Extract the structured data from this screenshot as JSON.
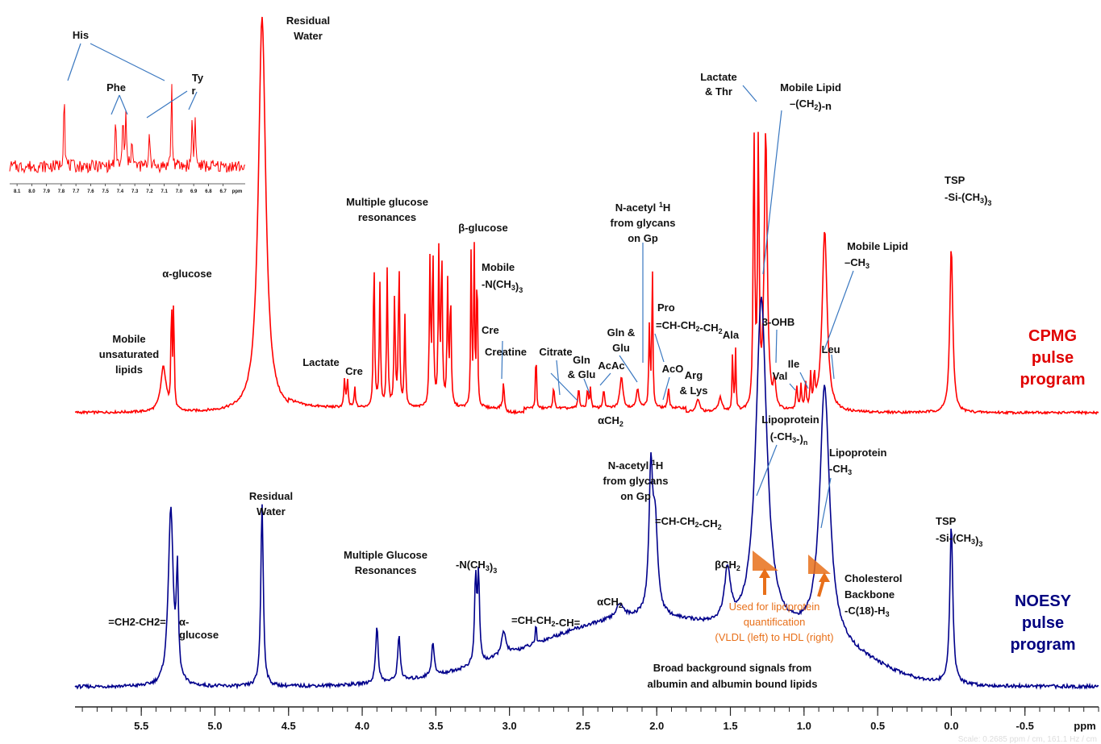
{
  "chart_data": {
    "type": "line",
    "xlabel": "ppm",
    "x_reversed": true,
    "xlim": [
      5.95,
      -1.0
    ],
    "x_ticks": [
      "5.5",
      "5.0",
      "4.5",
      "4.0",
      "3.5",
      "3.0",
      "2.5",
      "2.0",
      "1.5",
      "1.0",
      "0.5",
      "0.0",
      "-0.5"
    ],
    "x_tick_values": [
      5.5,
      5.0,
      4.5,
      4.0,
      3.5,
      3.0,
      2.5,
      2.0,
      1.5,
      1.0,
      0.5,
      0.0,
      -0.5
    ],
    "colors": {
      "cpmg": "#ff0000",
      "noesy": "#00008b",
      "annotation_line": "#3a78c0",
      "orange": "#e8701a"
    },
    "series": [
      {
        "name": "CPMG pulse program",
        "color": "#ff0000",
        "peaks": [
          {
            "ppm": 5.35,
            "h": 0.22,
            "w": 0.022
          },
          {
            "ppm": 5.295,
            "h": 0.56,
            "w": 0.004
          },
          {
            "ppm": 5.28,
            "h": 0.55,
            "w": 0.004
          },
          {
            "ppm": 4.68,
            "h": 1.95,
            "w": 0.03
          },
          {
            "ppm": 4.12,
            "h": 0.14,
            "w": 0.005
          },
          {
            "ppm": 4.1,
            "h": 0.14,
            "w": 0.005
          },
          {
            "ppm": 4.05,
            "h": 0.1,
            "w": 0.005
          },
          {
            "ppm": 3.92,
            "h": 0.75,
            "w": 0.005
          },
          {
            "ppm": 3.88,
            "h": 0.6,
            "w": 0.005
          },
          {
            "ppm": 3.83,
            "h": 0.68,
            "w": 0.005
          },
          {
            "ppm": 3.78,
            "h": 0.55,
            "w": 0.005
          },
          {
            "ppm": 3.75,
            "h": 0.72,
            "w": 0.005
          },
          {
            "ppm": 3.71,
            "h": 0.45,
            "w": 0.005
          },
          {
            "ppm": 3.54,
            "h": 0.7,
            "w": 0.005
          },
          {
            "ppm": 3.52,
            "h": 0.78,
            "w": 0.005
          },
          {
            "ppm": 3.48,
            "h": 0.74,
            "w": 0.005
          },
          {
            "ppm": 3.46,
            "h": 0.76,
            "w": 0.005
          },
          {
            "ppm": 3.42,
            "h": 0.6,
            "w": 0.005
          },
          {
            "ppm": 3.4,
            "h": 0.55,
            "w": 0.005
          },
          {
            "ppm": 3.26,
            "h": 0.78,
            "w": 0.004
          },
          {
            "ppm": 3.24,
            "h": 0.8,
            "w": 0.004
          },
          {
            "ppm": 3.22,
            "h": 0.76,
            "w": 0.004
          },
          {
            "ppm": 3.04,
            "h": 0.15,
            "w": 0.006
          },
          {
            "ppm": 2.82,
            "h": 0.38,
            "w": 0.003
          },
          {
            "ppm": 2.7,
            "h": 0.1,
            "w": 0.006
          },
          {
            "ppm": 2.53,
            "h": 0.1,
            "w": 0.006
          },
          {
            "ppm": 2.47,
            "h": 0.1,
            "w": 0.005
          },
          {
            "ppm": 2.45,
            "h": 0.1,
            "w": 0.005
          },
          {
            "ppm": 2.36,
            "h": 0.1,
            "w": 0.006
          },
          {
            "ppm": 2.24,
            "h": 0.16,
            "w": 0.012
          },
          {
            "ppm": 2.13,
            "h": 0.1,
            "w": 0.01
          },
          {
            "ppm": 2.05,
            "h": 0.4,
            "w": 0.005
          },
          {
            "ppm": 2.03,
            "h": 0.72,
            "w": 0.004
          },
          {
            "ppm": 1.92,
            "h": 0.1,
            "w": 0.006
          },
          {
            "ppm": 1.72,
            "h": 0.06,
            "w": 0.015
          },
          {
            "ppm": 1.57,
            "h": 0.07,
            "w": 0.015
          },
          {
            "ppm": 1.485,
            "h": 0.3,
            "w": 0.004
          },
          {
            "ppm": 1.465,
            "h": 0.3,
            "w": 0.004
          },
          {
            "ppm": 1.34,
            "h": 1.36,
            "w": 0.006
          },
          {
            "ppm": 1.31,
            "h": 1.3,
            "w": 0.006
          },
          {
            "ppm": 1.26,
            "h": 1.38,
            "w": 0.012
          },
          {
            "ppm": 1.2,
            "h": 0.12,
            "w": 0.01
          },
          {
            "ppm": 1.05,
            "h": 0.12,
            "w": 0.006
          },
          {
            "ppm": 1.02,
            "h": 0.12,
            "w": 0.005
          },
          {
            "ppm": 0.99,
            "h": 0.14,
            "w": 0.005
          },
          {
            "ppm": 0.955,
            "h": 0.16,
            "w": 0.005
          },
          {
            "ppm": 0.93,
            "h": 0.16,
            "w": 0.005
          },
          {
            "ppm": 0.86,
            "h": 0.9,
            "w": 0.02
          },
          {
            "ppm": 0.0,
            "h": 0.82,
            "w": 0.012
          }
        ]
      },
      {
        "name": "NOESY pulse program",
        "color": "#00008b",
        "peaks": [
          {
            "ppm": 5.3,
            "h": 0.62,
            "w": 0.02
          },
          {
            "ppm": 5.255,
            "h": 0.36,
            "w": 0.008
          },
          {
            "ppm": 4.68,
            "h": 0.64,
            "w": 0.01
          },
          {
            "ppm": 3.9,
            "h": 0.2,
            "w": 0.01
          },
          {
            "ppm": 3.75,
            "h": 0.16,
            "w": 0.01
          },
          {
            "ppm": 3.52,
            "h": 0.12,
            "w": 0.01
          },
          {
            "ppm": 3.23,
            "h": 0.3,
            "w": 0.008
          },
          {
            "ppm": 3.21,
            "h": 0.3,
            "w": 0.008
          },
          {
            "ppm": 3.04,
            "h": 0.08,
            "w": 0.02
          },
          {
            "ppm": 2.82,
            "h": 0.1,
            "w": 0.003
          },
          {
            "ppm": 2.25,
            "h": 0.05,
            "w": 0.03
          },
          {
            "ppm": 2.04,
            "h": 0.48,
            "w": 0.015
          },
          {
            "ppm": 2.01,
            "h": 0.3,
            "w": 0.02
          },
          {
            "ppm": 1.52,
            "h": 0.18,
            "w": 0.025
          },
          {
            "ppm": 1.29,
            "h": 1.16,
            "w": 0.045
          },
          {
            "ppm": 0.86,
            "h": 0.88,
            "w": 0.04
          },
          {
            "ppm": 0.0,
            "h": 0.56,
            "w": 0.012
          }
        ]
      }
    ],
    "program_labels": {
      "cpmg": [
        "CPMG",
        "pulse",
        "program"
      ],
      "noesy": [
        "NOESY",
        "pulse",
        "program"
      ]
    },
    "cpmg_annotations": {
      "mobile_unsat": [
        "Mobile",
        "unsaturated",
        "lipids"
      ],
      "alpha_glucose": "α-glucose",
      "residual_water": [
        "Residual",
        "Water"
      ],
      "lactate": "Lactate",
      "cre": "Cre",
      "multiple_glucose": [
        "Multiple glucose",
        "resonances"
      ],
      "beta_glucose": "β-glucose",
      "mobile_nch3": [
        "Mobile",
        "-N(CH",
        "3",
        ")",
        "3"
      ],
      "cre2": "Cre",
      "creatine": "Creatine",
      "citrate": "Citrate",
      "gln_glu": [
        "Gln",
        "& Glu"
      ],
      "acac": "AcAc",
      "alpha_ch2": [
        "αCH",
        "2"
      ],
      "gln_glu2": [
        "Gln &",
        "Glu"
      ],
      "nacetyl": [
        "N-acetyl ",
        "1",
        "H",
        "from glycans",
        "on Gp"
      ],
      "pro": [
        "Pro",
        "=CH-CH",
        "2",
        "-CH",
        "2"
      ],
      "aco": "AcO",
      "arg_lys": [
        "Arg",
        "& Lys"
      ],
      "ala": "Ala",
      "lactate_thr": [
        "Lactate",
        "& Thr"
      ],
      "mobile_lipid_ch2": [
        "Mobile Lipid",
        "–(CH",
        "2",
        ")-n"
      ],
      "three_ohb": "3-OHB",
      "val": "Val",
      "ile": "Ile",
      "leu": "Leu",
      "mobile_lipid_ch3": [
        "Mobile Lipid",
        "–CH",
        "3"
      ],
      "tsp": [
        "TSP",
        "-Si-(CH",
        "3",
        ")",
        "3"
      ]
    },
    "noesy_annotations": {
      "ch2ch2": "=CH2-CH2=",
      "alpha_glucose": [
        "α-",
        "glucose"
      ],
      "residual_water": [
        "Residual",
        "Water"
      ],
      "multiple_glucose": [
        "Multiple Glucose",
        "Resonances"
      ],
      "nch3": [
        "-N(CH",
        "3",
        ")",
        "3"
      ],
      "chch2ch": [
        "=CH-CH",
        "2",
        "-CH="
      ],
      "alpha_ch2": [
        "αCH",
        "2"
      ],
      "nacetyl": [
        "N-acetyl ",
        "1",
        "H",
        "from glycans",
        "on Gp"
      ],
      "chch2ch2": [
        "=CH-CH",
        "2",
        "-CH",
        "2"
      ],
      "beta_ch2": [
        "βCH",
        "2"
      ],
      "lipoprotein_n": [
        "Lipoprotein",
        "(-CH",
        "3",
        "-)",
        "n"
      ],
      "lipoprotein_ch3": [
        "Lipoprotein",
        "-CH",
        "3"
      ],
      "cholesterol": [
        "Cholesterol",
        "Backbone",
        "-C(18)-H",
        "3"
      ],
      "tsp": [
        "TSP",
        "-Si-(CH",
        "3",
        ")",
        "3"
      ],
      "broad": [
        "Broad background signals from",
        "albumin and albumin bound lipids"
      ],
      "used_for": [
        "Used for lipoprotein",
        "quantification",
        "(VLDL (left) to HDL (right)"
      ]
    },
    "inset": {
      "labels": {
        "his": "His",
        "phe": "Phe",
        "tyr": [
          "Ty",
          "r"
        ]
      },
      "x_ticks": [
        "8.1",
        "8.0",
        "7.9",
        "7.8",
        "7.7",
        "7.6",
        "7.5",
        "7.4",
        "7.3",
        "7.2",
        "7.1",
        "7.0",
        "6.9",
        "6.8",
        "6.7"
      ],
      "x_tick_values": [
        8.1,
        8.0,
        7.9,
        7.8,
        7.7,
        7.6,
        7.5,
        7.4,
        7.3,
        7.2,
        7.1,
        7.0,
        6.9,
        6.8,
        6.7
      ],
      "xlim": [
        8.15,
        6.55
      ],
      "xlabel": "ppm",
      "peaks": [
        {
          "ppm": 7.78,
          "h": 1.0
        },
        {
          "ppm": 7.43,
          "h": 0.55
        },
        {
          "ppm": 7.38,
          "h": 0.62
        },
        {
          "ppm": 7.36,
          "h": 0.6
        },
        {
          "ppm": 7.32,
          "h": 0.42
        },
        {
          "ppm": 7.2,
          "h": 0.5
        },
        {
          "ppm": 7.05,
          "h": 1.0
        },
        {
          "ppm": 6.91,
          "h": 0.6
        },
        {
          "ppm": 6.89,
          "h": 0.58
        }
      ]
    },
    "footer": "Scale: 0.2685 ppm / cm, 161.1 Hz / cm"
  }
}
